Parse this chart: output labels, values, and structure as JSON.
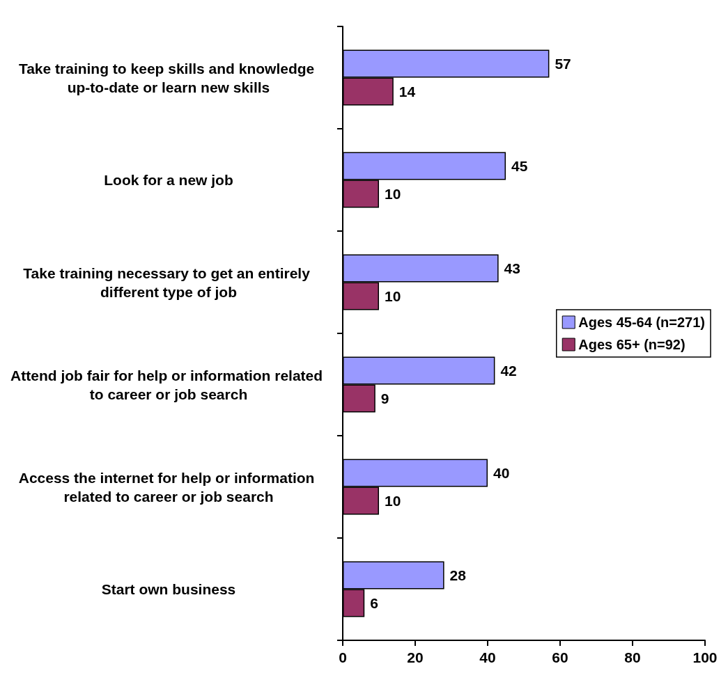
{
  "chart_data": {
    "type": "bar",
    "orientation": "horizontal",
    "categories": [
      "Take training to keep skills and knowledge up-to-date or learn new skills",
      "Look for a new job",
      "Take training necessary to get an entirely different type of job",
      "Attend job fair for help or information related to career or job search",
      "Access the internet for help or information related to career or job search",
      "Start own business"
    ],
    "series": [
      {
        "name": "Ages 45-64 (n=271)",
        "color": "#9999ff",
        "values": [
          57,
          45,
          43,
          42,
          40,
          28
        ]
      },
      {
        "name": "Ages 65+ (n=92)",
        "color": "#993366",
        "values": [
          14,
          10,
          10,
          9,
          10,
          6
        ]
      }
    ],
    "xlim": [
      0,
      100
    ],
    "xticks": [
      0,
      20,
      40,
      60,
      80,
      100
    ],
    "data_labels": true,
    "grid": false,
    "legend": "right"
  }
}
